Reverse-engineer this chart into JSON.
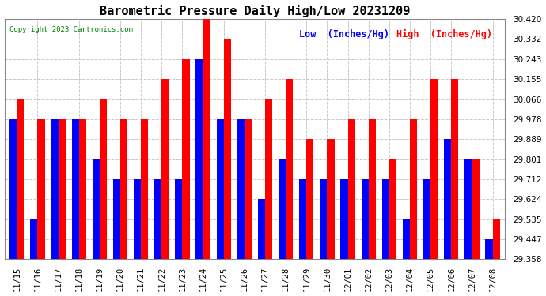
{
  "title": "Barometric Pressure Daily High/Low 20231209",
  "copyright": "Copyright 2023 Cartronics.com",
  "legend_low": "Low  (Inches/Hg)",
  "legend_high": "High  (Inches/Hg)",
  "dates": [
    "11/15",
    "11/16",
    "11/17",
    "11/18",
    "11/19",
    "11/20",
    "11/21",
    "11/22",
    "11/23",
    "11/24",
    "11/25",
    "11/26",
    "11/27",
    "11/28",
    "11/29",
    "11/30",
    "12/01",
    "12/02",
    "12/03",
    "12/04",
    "12/05",
    "12/06",
    "12/07",
    "12/08"
  ],
  "high": [
    30.066,
    29.978,
    29.978,
    29.978,
    30.066,
    29.978,
    29.978,
    30.155,
    30.243,
    30.42,
    30.332,
    29.978,
    30.066,
    30.155,
    29.889,
    29.889,
    29.978,
    29.978,
    29.801,
    29.978,
    30.155,
    30.155,
    29.801,
    29.535
  ],
  "low": [
    29.978,
    29.535,
    29.978,
    29.978,
    29.801,
    29.712,
    29.712,
    29.712,
    29.712,
    30.243,
    29.978,
    29.978,
    29.624,
    29.801,
    29.712,
    29.712,
    29.712,
    29.712,
    29.712,
    29.535,
    29.712,
    29.889,
    29.801,
    29.447
  ],
  "ylim_min": 29.358,
  "ylim_max": 30.42,
  "yticks": [
    29.358,
    29.447,
    29.535,
    29.624,
    29.712,
    29.801,
    29.889,
    29.978,
    30.066,
    30.155,
    30.243,
    30.332,
    30.42
  ],
  "bar_width": 0.35,
  "color_low": "#0000ff",
  "color_high": "#ff0000",
  "bg_color": "#ffffff",
  "grid_color": "#c8c8c8",
  "title_fontsize": 11,
  "tick_fontsize": 7.5,
  "legend_fontsize": 8.5,
  "copyright_fontsize": 6.5
}
